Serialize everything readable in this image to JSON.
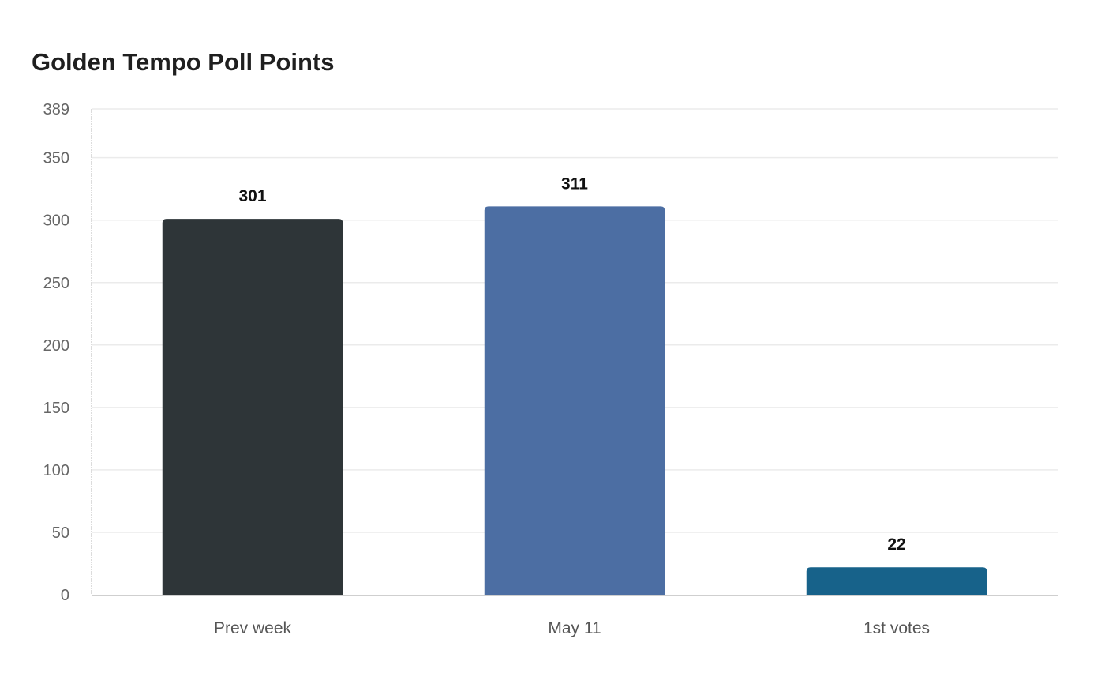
{
  "chart_data": {
    "type": "bar",
    "title": "Golden Tempo Poll Points",
    "categories": [
      "Prev week",
      "May 11",
      "1st votes"
    ],
    "values": [
      301,
      311,
      22
    ],
    "colors": [
      "#2e3538",
      "#4c6ea3",
      "#17628a"
    ],
    "ylim": [
      0,
      389
    ],
    "yticks": [
      0,
      50,
      100,
      150,
      200,
      250,
      300,
      350,
      389
    ],
    "xlabel": "",
    "ylabel": "",
    "grid": true,
    "legend": "none"
  }
}
